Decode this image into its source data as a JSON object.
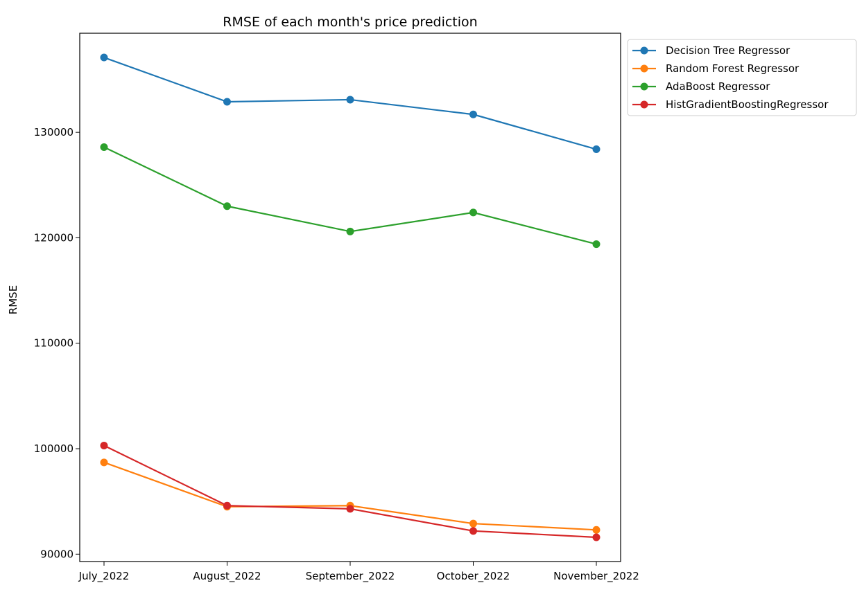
{
  "chart_data": {
    "type": "line",
    "title": "RMSE of each month's price prediction",
    "xlabel": "",
    "ylabel": "RMSE",
    "categories": [
      "July_2022",
      "August_2022",
      "September_2022",
      "October_2022",
      "November_2022"
    ],
    "ylim": [
      89300,
      139400
    ],
    "yticks": [
      90000,
      100000,
      110000,
      120000,
      130000
    ],
    "grid": false,
    "legend_position": "outside top-right",
    "series": [
      {
        "name": "Decision Tree Regressor",
        "color": "#1f77b4",
        "marker": "circle",
        "values": [
          137100,
          132900,
          133100,
          131700,
          128400
        ]
      },
      {
        "name": "Random Forest Regressor",
        "color": "#ff7f0e",
        "marker": "circle",
        "values": [
          98700,
          94500,
          94600,
          92900,
          92300
        ]
      },
      {
        "name": "AdaBoost Regressor",
        "color": "#2ca02c",
        "marker": "circle",
        "values": [
          128600,
          123000,
          120600,
          122400,
          119400
        ]
      },
      {
        "name": "HistGradientBoostingRegressor",
        "color": "#d62728",
        "marker": "circle",
        "values": [
          100300,
          94600,
          94300,
          92200,
          91600
        ]
      }
    ]
  }
}
